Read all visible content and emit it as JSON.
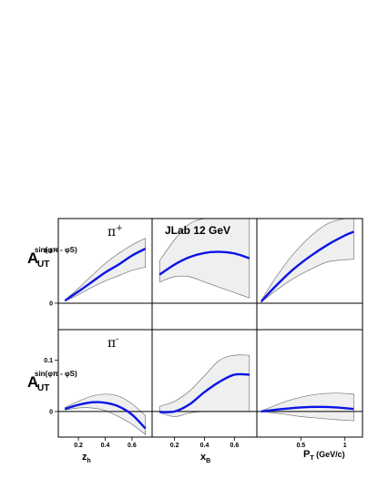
{
  "chart_data": {
    "type": "line",
    "title": "JLab 12 GeV",
    "ylabel_main": "A",
    "ylabel_sub": "UT",
    "ylabel_sup": "sin(φπ - φS)",
    "yticks": [
      "0",
      "0.1"
    ],
    "ylim": [
      -0.05,
      0.16
    ],
    "columns": [
      {
        "xlabel": "z",
        "xlabel_sub": "h",
        "xlim": [
          0.05,
          0.75
        ],
        "xticks": [
          0.2,
          0.4,
          0.6
        ],
        "xtick_labels": [
          "0.2",
          "0.4",
          "0.6"
        ]
      },
      {
        "xlabel": "x",
        "xlabel_sub": "B",
        "xlim": [
          0.05,
          0.75
        ],
        "xticks": [
          0.2,
          0.4,
          0.6
        ],
        "xtick_labels": [
          "0.2",
          "0.4",
          "0.6"
        ]
      },
      {
        "xlabel": "P",
        "xlabel_sub": "T",
        "xlabel_suffix": " (GeV/c)",
        "xlim": [
          0.0,
          1.2
        ],
        "xticks": [
          0.5,
          1.0
        ],
        "xtick_labels": [
          "0.5",
          "1"
        ]
      }
    ],
    "rows": [
      {
        "label": "π",
        "label_sup": "+"
      },
      {
        "label": "π",
        "label_sup": "-"
      }
    ],
    "panels": [
      {
        "id": "pi-plus-zh",
        "row": 0,
        "col": 0,
        "x": [
          0.1,
          0.2,
          0.3,
          0.4,
          0.5,
          0.6,
          0.7
        ],
        "y": [
          0.005,
          0.022,
          0.04,
          0.058,
          0.073,
          0.09,
          0.103
        ],
        "upper": [
          0.006,
          0.028,
          0.052,
          0.075,
          0.094,
          0.11,
          0.123
        ],
        "lower": [
          0.004,
          0.016,
          0.03,
          0.042,
          0.052,
          0.062,
          0.068
        ]
      },
      {
        "id": "pi-plus-xb",
        "row": 0,
        "col": 1,
        "x": [
          0.1,
          0.2,
          0.3,
          0.4,
          0.5,
          0.6,
          0.7
        ],
        "y": [
          0.054,
          0.073,
          0.087,
          0.095,
          0.097,
          0.094,
          0.085
        ],
        "upper": [
          0.08,
          0.12,
          0.15,
          0.16,
          0.16,
          0.16,
          0.16
        ],
        "lower": [
          0.04,
          0.05,
          0.05,
          0.04,
          0.03,
          0.02,
          0.01
        ]
      },
      {
        "id": "pi-plus-pt",
        "row": 0,
        "col": 2,
        "x": [
          0.05,
          0.2,
          0.4,
          0.6,
          0.8,
          1.0,
          1.1
        ],
        "y": [
          0.003,
          0.03,
          0.062,
          0.088,
          0.11,
          0.128,
          0.135
        ],
        "upper": [
          0.005,
          0.045,
          0.09,
          0.125,
          0.15,
          0.16,
          0.16
        ],
        "lower": [
          0.002,
          0.022,
          0.045,
          0.063,
          0.078,
          0.082,
          0.083
        ]
      },
      {
        "id": "pi-minus-zh",
        "row": 1,
        "col": 0,
        "x": [
          0.1,
          0.2,
          0.3,
          0.4,
          0.5,
          0.6,
          0.7
        ],
        "y": [
          0.005,
          0.013,
          0.018,
          0.017,
          0.01,
          -0.006,
          -0.033
        ],
        "upper": [
          0.008,
          0.02,
          0.03,
          0.034,
          0.03,
          0.015,
          -0.008
        ],
        "lower": [
          0.003,
          0.007,
          0.007,
          0.002,
          -0.01,
          -0.025,
          -0.045
        ]
      },
      {
        "id": "pi-minus-xb",
        "row": 1,
        "col": 1,
        "x": [
          0.1,
          0.2,
          0.3,
          0.4,
          0.5,
          0.6,
          0.7
        ],
        "y": [
          -0.001,
          0.0,
          0.014,
          0.038,
          0.058,
          0.072,
          0.072
        ],
        "upper": [
          0.01,
          0.02,
          0.04,
          0.07,
          0.1,
          0.11,
          0.11
        ],
        "lower": [
          -0.002,
          -0.01,
          -0.003,
          0.0,
          0.0,
          0.0,
          0.0
        ]
      },
      {
        "id": "pi-minus-pt",
        "row": 1,
        "col": 2,
        "x": [
          0.05,
          0.3,
          0.5,
          0.7,
          0.9,
          1.1
        ],
        "y": [
          0.0,
          0.005,
          0.008,
          0.009,
          0.008,
          0.005
        ],
        "upper": [
          0.001,
          0.018,
          0.028,
          0.034,
          0.036,
          0.034
        ],
        "lower": [
          0.0,
          -0.005,
          -0.01,
          -0.013,
          -0.016,
          -0.018
        ]
      }
    ]
  }
}
